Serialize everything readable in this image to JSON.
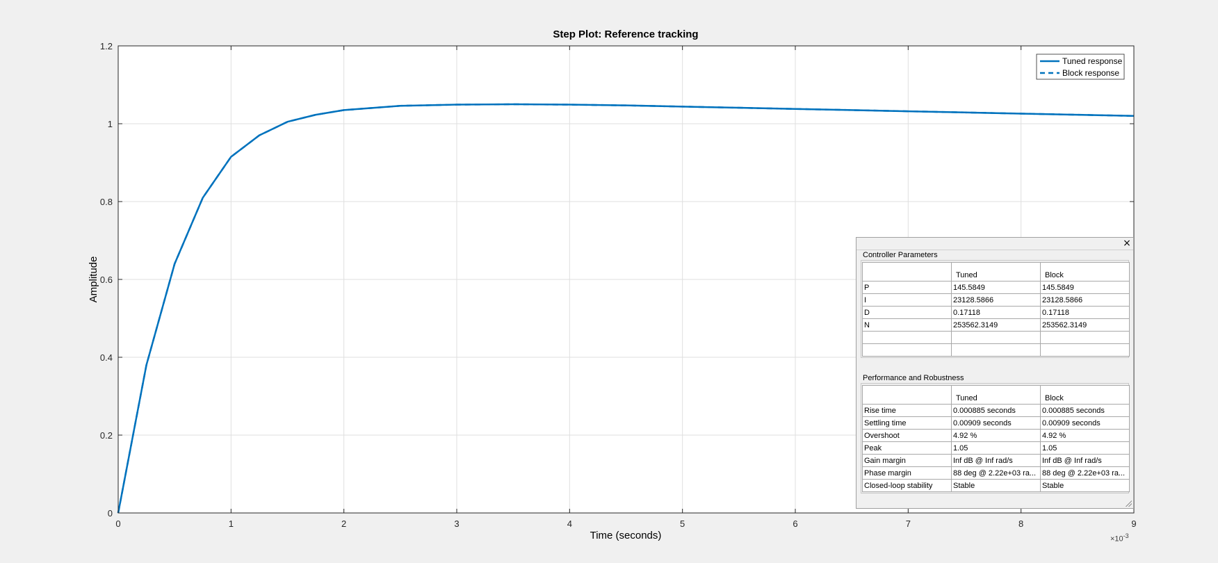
{
  "chart_data": {
    "type": "line",
    "title": "Step Plot: Reference tracking",
    "xlabel": "Time (seconds)",
    "ylabel": "Amplitude",
    "x_exponent_label": "×10",
    "x_exponent_power": "-3",
    "xlim": [
      0,
      9
    ],
    "ylim": [
      0,
      1.2
    ],
    "x_ticks": [
      "0",
      "1",
      "2",
      "3",
      "4",
      "5",
      "6",
      "7",
      "8",
      "9"
    ],
    "y_ticks": [
      "0",
      "0.2",
      "0.4",
      "0.6",
      "0.8",
      "1",
      "1.2"
    ],
    "grid": true,
    "legend_position": "top-right",
    "series": [
      {
        "name": "Tuned response",
        "style": "solid",
        "color": "#0072bd",
        "x": [
          0,
          0.25,
          0.5,
          0.75,
          1.0,
          1.25,
          1.5,
          1.75,
          2.0,
          2.5,
          3.0,
          3.5,
          4.0,
          4.5,
          5.0,
          5.5,
          6.0,
          6.5,
          7.0,
          7.5,
          8.0,
          8.5,
          9.0
        ],
        "y": [
          0,
          0.38,
          0.64,
          0.81,
          0.915,
          0.97,
          1.005,
          1.023,
          1.035,
          1.046,
          1.049,
          1.05,
          1.049,
          1.047,
          1.044,
          1.041,
          1.038,
          1.035,
          1.032,
          1.029,
          1.026,
          1.023,
          1.02
        ]
      },
      {
        "name": "Block response",
        "style": "dashed",
        "color": "#0072bd",
        "x": [
          0,
          0.25,
          0.5,
          0.75,
          1.0,
          1.25,
          1.5,
          1.75,
          2.0,
          2.5,
          3.0,
          3.5,
          4.0,
          4.5,
          5.0,
          5.5,
          6.0,
          6.5,
          7.0,
          7.5,
          8.0,
          8.5,
          9.0
        ],
        "y": [
          0,
          0.38,
          0.64,
          0.81,
          0.915,
          0.97,
          1.005,
          1.023,
          1.035,
          1.046,
          1.049,
          1.05,
          1.049,
          1.047,
          1.044,
          1.041,
          1.038,
          1.035,
          1.032,
          1.029,
          1.026,
          1.023,
          1.02
        ]
      }
    ]
  },
  "panel": {
    "close_icon": "×",
    "controller": {
      "title": "Controller Parameters",
      "headers": [
        "",
        "Tuned",
        "Block"
      ],
      "rows": [
        [
          "P",
          "145.5849",
          "145.5849"
        ],
        [
          "I",
          "23128.5866",
          "23128.5866"
        ],
        [
          "D",
          "0.17118",
          "0.17118"
        ],
        [
          "N",
          "253562.3149",
          "253562.3149"
        ],
        [
          "",
          "",
          ""
        ],
        [
          "",
          "",
          ""
        ]
      ]
    },
    "performance": {
      "title": "Performance and Robustness",
      "headers": [
        "",
        "Tuned",
        "Block"
      ],
      "rows": [
        [
          "Rise time",
          "0.000885 seconds",
          "0.000885 seconds"
        ],
        [
          "Settling time",
          "0.00909 seconds",
          "0.00909 seconds"
        ],
        [
          "Overshoot",
          "4.92 %",
          "4.92 %"
        ],
        [
          "Peak",
          "1.05",
          "1.05"
        ],
        [
          "Gain margin",
          "Inf dB @ Inf rad/s",
          "Inf dB @ Inf rad/s"
        ],
        [
          "Phase margin",
          "88 deg @ 2.22e+03 ra...",
          "88 deg @ 2.22e+03 ra..."
        ],
        [
          "Closed-loop stability",
          "Stable",
          "Stable"
        ]
      ]
    }
  }
}
